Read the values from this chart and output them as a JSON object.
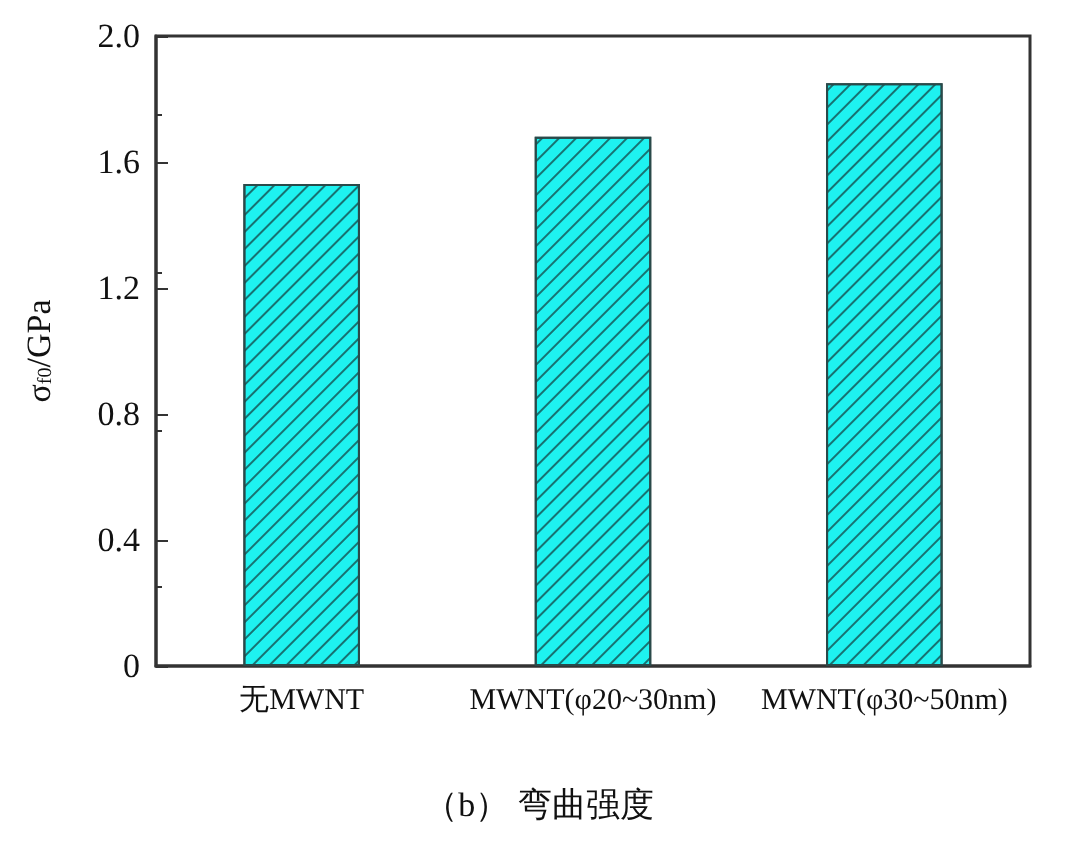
{
  "chart_data": {
    "type": "bar",
    "title": "（b） 弯曲强度",
    "ylabel": "σ$_{f0}$/GPa",
    "categories": [
      "无MWNT",
      "MWNT(φ20~30nm)",
      "MWNT(φ30~50nm)"
    ],
    "values": [
      1.53,
      1.68,
      1.85
    ],
    "color": "#1ef2f0",
    "ylim": [
      0,
      2
    ],
    "yticks": [
      0,
      0.4,
      0.8,
      1.2,
      1.6,
      {
        "value": 2,
        "label": "2.0"
      }
    ],
    "grid": false
  }
}
